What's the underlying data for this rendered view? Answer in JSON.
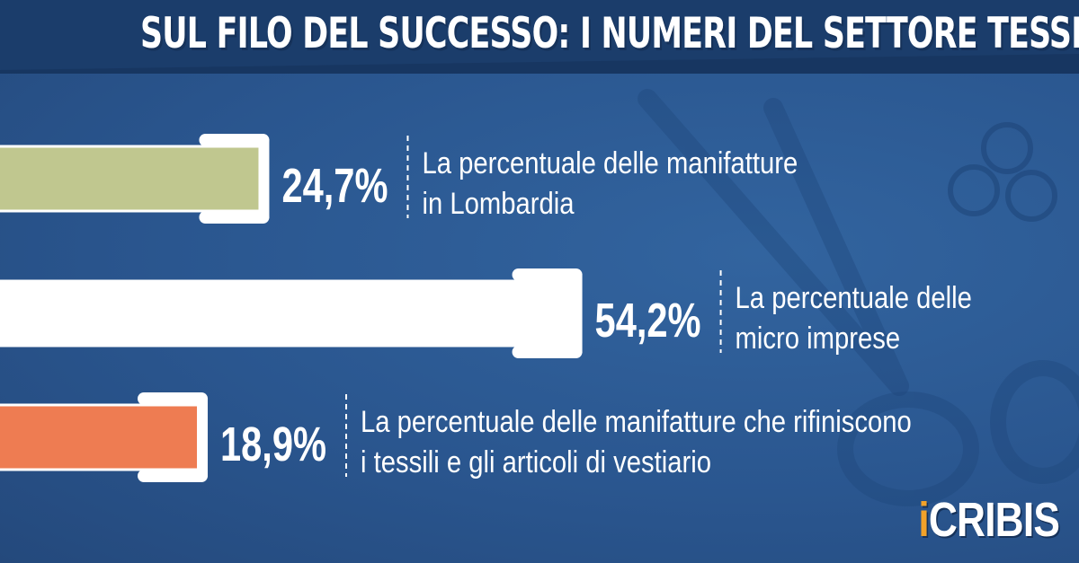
{
  "title": "SUL FILO DEL SUCCESSO: I NUMERI DEL SETTORE TESSILE IN ITALIA",
  "logo": {
    "accent_part": "i",
    "rest": "CRIBIS"
  },
  "chart_data": {
    "type": "bar",
    "orientation": "horizontal",
    "unit": "%",
    "xlim": [
      0,
      60
    ],
    "bars": [
      {
        "value": 24.7,
        "value_label": "24,7%",
        "label_lines": [
          "La percentuale delle manifatture",
          "in Lombardia"
        ],
        "color": "#c0c78f"
      },
      {
        "value": 54.2,
        "value_label": "54,2%",
        "label_lines": [
          "La percentuale delle",
          "micro imprese"
        ],
        "color": "#ffffff"
      },
      {
        "value": 18.9,
        "value_label": "18,9%",
        "label_lines": [
          "La percentuale delle manifatture che rifiniscono",
          "i tessili e gli articoli di vestiario"
        ],
        "color": "#ee7c52"
      }
    ]
  },
  "colors": {
    "background": "#2d5a94",
    "title_band": "#1b3d6b",
    "accent": "#f2a22a"
  }
}
